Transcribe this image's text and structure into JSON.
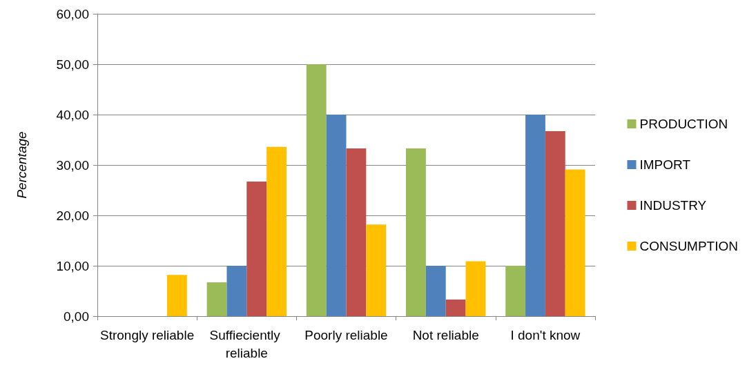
{
  "chart_data": {
    "type": "bar",
    "ylabel": "Percentage",
    "categories": [
      "Strongly reliable",
      "Suffieciently reliable",
      "Poorly reliable",
      "Not reliable",
      "I don't know"
    ],
    "series": [
      {
        "name": "PRODUCTION",
        "color": "#9bbb59",
        "values": [
          0,
          6.7,
          50,
          33.3,
          10
        ]
      },
      {
        "name": "IMPORT",
        "color": "#4f81bd",
        "values": [
          0,
          10,
          40,
          10,
          40
        ]
      },
      {
        "name": "INDUSTRY",
        "color": "#c0504d",
        "values": [
          0,
          26.7,
          33.3,
          3.3,
          36.7
        ]
      },
      {
        "name": "CONSUMPTION",
        "color": "#ffc000",
        "values": [
          8.2,
          33.6,
          18.2,
          10.9,
          29.1
        ]
      }
    ],
    "ylim": [
      0,
      60
    ],
    "yticks": [
      {
        "value": 0,
        "label": "0,00"
      },
      {
        "value": 10,
        "label": "10,00"
      },
      {
        "value": 20,
        "label": "20,00"
      },
      {
        "value": 30,
        "label": "30,00"
      },
      {
        "value": 40,
        "label": "40,00"
      },
      {
        "value": 50,
        "label": "50,00"
      },
      {
        "value": 60,
        "label": "60,00"
      }
    ],
    "grid": "y",
    "legend": "right"
  }
}
